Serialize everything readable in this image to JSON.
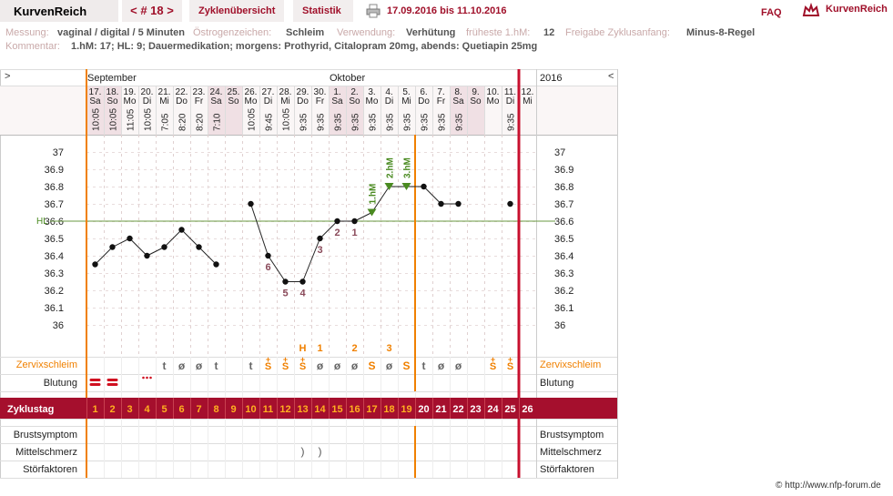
{
  "header": {
    "brand": "KurvenReich",
    "nav_prev": "<",
    "cycle_number": "# 18",
    "nav_next": ">",
    "tab_cycles": "Zyklenübersicht",
    "tab_stats": "Statistik",
    "date_range": "17.09.2016 bis 11.10.2016",
    "faq": "FAQ",
    "logo_text": "KurvenReich"
  },
  "info": {
    "messung_label": "Messung:",
    "messung_value": "vaginal / digital / 5 Minuten",
    "oestrogen_label": "Östrogenzeichen:",
    "oestrogen_value": "Schleim",
    "verwendung_label": "Verwendung:",
    "verwendung_value": "Verhütung",
    "frueheste_label": "früheste 1.hM:",
    "frueheste_value": "12",
    "freigabe_label": "Freigabe Zyklusanfang:",
    "freigabe_value": "Minus-8-Regel",
    "kommentar_label": "Kommentar:",
    "kommentar_value": "1.hM: 17; HL: 9; Dauermedikation; morgens: Prothyrid, Citalopram 20mg, abends: Quetiapin 25mg"
  },
  "chart_nav": {
    "left_arrow": ">",
    "right_arrow": "<",
    "year": "2016"
  },
  "months": [
    "September",
    "Oktober"
  ],
  "rows": {
    "zervix": "Zervixschleim",
    "blutung": "Blutung",
    "zyklustag": "Zyklustag",
    "brust": "Brustsymptom",
    "mittel": "Mittelschmerz",
    "stoer": "Störfaktoren"
  },
  "coverline_label": "HL",
  "copyright": "© http://www.nfp-forum.de",
  "colors": {
    "accent": "#a0102a",
    "orange": "#f08000",
    "green": "#4a8a20",
    "weekend": "#f0e0e4"
  },
  "chart_data": {
    "type": "line",
    "title": "",
    "ylabel": "",
    "ylim": [
      35.9,
      37.1
    ],
    "y_ticks": [
      "37",
      "36.9",
      "36.8",
      "36.7",
      "36.6",
      "36.5",
      "36.4",
      "36.3",
      "36.2",
      "36.1",
      "36"
    ],
    "coverline": 36.6,
    "days": [
      {
        "date": "17.",
        "wd": "Sa",
        "time": "10:05",
        "temp": 36.35,
        "zervix": "",
        "blut": "heavy",
        "cd": "1"
      },
      {
        "date": "18.",
        "wd": "So",
        "time": "10:05",
        "temp": 36.45,
        "zervix": "",
        "blut": "heavy",
        "cd": "2"
      },
      {
        "date": "19.",
        "wd": "Mo",
        "time": "11:05",
        "temp": 36.5,
        "zervix": "",
        "blut": "",
        "cd": "3"
      },
      {
        "date": "20.",
        "wd": "Di",
        "time": "10:05",
        "temp": 36.4,
        "zervix": "",
        "blut": "spot",
        "cd": "4"
      },
      {
        "date": "21.",
        "wd": "Mi",
        "time": "7:05",
        "temp": 36.45,
        "zervix": "t",
        "blut": "",
        "cd": "5"
      },
      {
        "date": "22.",
        "wd": "Do",
        "time": "8:20",
        "temp": 36.55,
        "zervix": "ø",
        "blut": "",
        "cd": "6"
      },
      {
        "date": "23.",
        "wd": "Fr",
        "time": "8:20",
        "temp": 36.45,
        "zervix": "ø",
        "blut": "",
        "cd": "7"
      },
      {
        "date": "24.",
        "wd": "Sa",
        "time": "7:10",
        "temp": 36.35,
        "zervix": "t",
        "blut": "",
        "cd": "8"
      },
      {
        "date": "25.",
        "wd": "So",
        "time": "",
        "temp": null,
        "zervix": "",
        "blut": "",
        "cd": "9"
      },
      {
        "date": "26.",
        "wd": "Mo",
        "time": "10:05",
        "temp": 36.7,
        "zervix": "t",
        "blut": "",
        "cd": "10"
      },
      {
        "date": "27.",
        "wd": "Di",
        "time": "9:45",
        "temp": 36.4,
        "zervix": "s+",
        "blut": "",
        "cd": "11",
        "num": "6"
      },
      {
        "date": "28.",
        "wd": "Mi",
        "time": "10:05",
        "temp": 36.25,
        "zervix": "s+",
        "blut": "",
        "cd": "12",
        "num": "5"
      },
      {
        "date": "29.",
        "wd": "Do",
        "time": "9:35",
        "temp": 36.25,
        "zervix": "s+",
        "blut": "",
        "cd": "13",
        "num": "4",
        "peak": "H",
        "mittel": ")"
      },
      {
        "date": "30.",
        "wd": "Fr",
        "time": "9:35",
        "temp": 36.5,
        "zervix": "ø",
        "blut": "",
        "cd": "14",
        "num": "3",
        "peak": "1",
        "mittel": ")"
      },
      {
        "date": "1.",
        "wd": "Sa",
        "time": "9:35",
        "temp": 36.6,
        "zervix": "ø",
        "blut": "",
        "cd": "15",
        "num": "2"
      },
      {
        "date": "2.",
        "wd": "So",
        "time": "9:35",
        "temp": 36.6,
        "zervix": "ø",
        "blut": "",
        "cd": "16",
        "num": "1",
        "peak": "2"
      },
      {
        "date": "3.",
        "wd": "Mo",
        "time": "9:35",
        "temp": 36.65,
        "zervix": "S",
        "blut": "",
        "cd": "17",
        "hm": "1.hM"
      },
      {
        "date": "4.",
        "wd": "Di",
        "time": "9:35",
        "temp": 36.8,
        "zervix": "ø",
        "blut": "",
        "cd": "18",
        "hm": "2.hM",
        "peak": "3"
      },
      {
        "date": "5.",
        "wd": "Mi",
        "time": "9:35",
        "temp": 36.8,
        "zervix": "S",
        "blut": "",
        "cd": "19",
        "hm": "3.hM"
      },
      {
        "date": "6.",
        "wd": "Do",
        "time": "9:35",
        "temp": 36.8,
        "zervix": "t",
        "blut": "",
        "cd": "20"
      },
      {
        "date": "7.",
        "wd": "Fr",
        "time": "9:35",
        "temp": 36.7,
        "zervix": "ø",
        "blut": "",
        "cd": "21"
      },
      {
        "date": "8.",
        "wd": "Sa",
        "time": "9:35",
        "temp": 36.7,
        "zervix": "ø",
        "blut": "",
        "cd": "22"
      },
      {
        "date": "9.",
        "wd": "So",
        "time": "",
        "temp": null,
        "zervix": "",
        "blut": "",
        "cd": "23"
      },
      {
        "date": "10.",
        "wd": "Mo",
        "time": "",
        "temp": null,
        "zervix": "s+",
        "blut": "",
        "cd": "24"
      },
      {
        "date": "11.",
        "wd": "Di",
        "time": "9:35",
        "temp": 36.7,
        "zervix": "s+",
        "blut": "",
        "cd": "25"
      },
      {
        "date": "12.",
        "wd": "Mi",
        "time": "",
        "temp": null,
        "zervix": "",
        "blut": "",
        "cd": "26"
      }
    ]
  }
}
